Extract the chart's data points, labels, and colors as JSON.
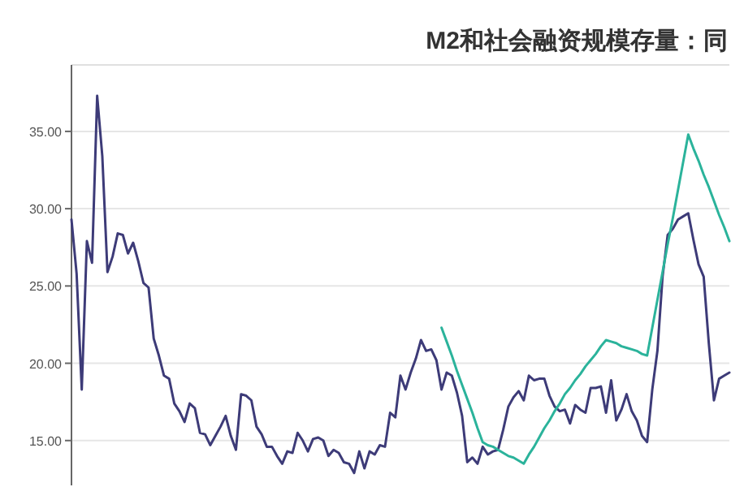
{
  "chart_data": {
    "type": "line",
    "title": "M2和社会融资规模存量：同",
    "ylim": [
      12.1,
      39.3
    ],
    "yticks": [
      {
        "value": 15,
        "label": "15.00"
      },
      {
        "value": 20,
        "label": "20.00"
      },
      {
        "value": 25,
        "label": "25.00"
      },
      {
        "value": 30,
        "label": "30.00"
      },
      {
        "value": 35,
        "label": "35.00"
      }
    ],
    "tick_labels": "y",
    "grid": "y",
    "categories": [
      null,
      null,
      null,
      null,
      null,
      null,
      null,
      null,
      null,
      null,
      null,
      null,
      null,
      null,
      null,
      null,
      null,
      null,
      null,
      null,
      null,
      null,
      null,
      null,
      null,
      null,
      null,
      null,
      null,
      null,
      null,
      null,
      null,
      null,
      null,
      null,
      null,
      null,
      null,
      null,
      null,
      null,
      null,
      null,
      null,
      null,
      null,
      null,
      null,
      null,
      null,
      null,
      null,
      null,
      null,
      null,
      null,
      null,
      null,
      null,
      null,
      null,
      null,
      null,
      null,
      null,
      null,
      null,
      null,
      null,
      null,
      null,
      null,
      null,
      null,
      null,
      null,
      null,
      null,
      null,
      null,
      null,
      null,
      null,
      null,
      null,
      null,
      null,
      null,
      null,
      null,
      null,
      null,
      null,
      null,
      null,
      null,
      null,
      null,
      null,
      null,
      null,
      null,
      null,
      null,
      null,
      null,
      null,
      null,
      null,
      null,
      null,
      null,
      null,
      null,
      null,
      null,
      null,
      null,
      null,
      null,
      null,
      null,
      null,
      null,
      null,
      null,
      null,
      null
    ],
    "series": [
      {
        "color": "#3d3b78",
        "values": [
          29.3,
          25.8,
          18.3,
          27.9,
          26.5,
          37.3,
          33.4,
          25.9,
          26.9,
          28.4,
          28.3,
          27.1,
          27.8,
          26.6,
          25.2,
          24.9,
          21.6,
          20.5,
          19.2,
          19.0,
          17.4,
          16.9,
          16.2,
          17.4,
          17.1,
          15.5,
          15.4,
          14.7,
          15.3,
          15.9,
          16.6,
          15.3,
          14.4,
          18.0,
          17.9,
          17.6,
          15.9,
          15.4,
          14.6,
          14.6,
          14.0,
          13.5,
          14.3,
          14.2,
          15.5,
          15.0,
          14.3,
          15.1,
          15.2,
          15.0,
          14.0,
          14.4,
          14.2,
          13.6,
          13.5,
          12.9,
          14.3,
          13.2,
          14.3,
          14.1,
          14.7,
          14.6,
          16.8,
          16.5,
          19.2,
          18.3,
          19.4,
          20.3,
          21.5,
          20.8,
          20.9,
          20.2,
          18.3,
          19.4,
          19.2,
          18.1,
          16.6,
          13.6,
          13.9,
          13.5,
          14.6,
          14.1,
          14.3,
          14.4,
          15.7,
          17.2,
          17.8,
          18.2,
          17.6,
          19.2,
          18.9,
          19.0,
          19.0,
          17.9,
          17.2,
          16.9,
          17.0,
          16.1,
          17.3,
          17.0,
          16.8,
          18.4,
          18.4,
          18.5,
          16.8,
          18.9,
          16.3,
          17.0,
          18.0,
          16.9,
          16.3,
          15.3,
          14.9,
          18.3,
          20.8,
          25.6,
          28.3,
          28.7,
          29.3,
          29.5,
          29.7,
          28.0,
          26.4,
          25.6,
          21.3,
          17.6,
          19.0,
          19.2,
          19.4
        ]
      },
      {
        "color": "#2bb39b",
        "values": [
          null,
          null,
          null,
          null,
          null,
          null,
          null,
          null,
          null,
          null,
          null,
          null,
          null,
          null,
          null,
          null,
          null,
          null,
          null,
          null,
          null,
          null,
          null,
          null,
          null,
          null,
          null,
          null,
          null,
          null,
          null,
          null,
          null,
          null,
          null,
          null,
          null,
          null,
          null,
          null,
          null,
          null,
          null,
          null,
          null,
          null,
          null,
          null,
          null,
          null,
          null,
          null,
          null,
          null,
          null,
          null,
          null,
          null,
          null,
          null,
          null,
          null,
          null,
          null,
          null,
          null,
          null,
          null,
          null,
          null,
          null,
          null,
          22.3,
          21.4,
          20.5,
          19.5,
          18.6,
          17.7,
          16.8,
          15.8,
          14.9,
          14.7,
          14.6,
          14.4,
          14.2,
          14.0,
          13.9,
          13.7,
          13.5,
          14.1,
          14.6,
          15.2,
          15.8,
          16.3,
          16.9,
          17.4,
          18.0,
          18.4,
          18.9,
          19.3,
          19.8,
          20.2,
          20.6,
          21.1,
          21.5,
          21.4,
          21.3,
          21.1,
          21.0,
          20.9,
          20.8,
          20.6,
          20.5,
          22.3,
          24.1,
          25.9,
          27.7,
          29.4,
          31.2,
          33.0,
          34.8,
          33.9,
          33.1,
          32.2,
          31.4,
          30.5,
          29.6,
          28.8,
          27.9
        ]
      }
    ]
  }
}
